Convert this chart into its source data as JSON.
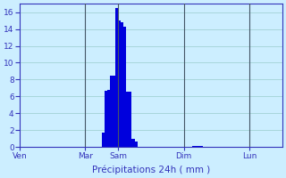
{
  "title": "",
  "xlabel": "Précipitations 24h ( mm )",
  "background_color": "#cceeff",
  "bar_color": "#0000dd",
  "bar_edge_color": "#3399ff",
  "grid_color": "#99cccc",
  "text_color": "#3333bb",
  "ylim": [
    0,
    17
  ],
  "yticks": [
    0,
    2,
    4,
    6,
    8,
    10,
    12,
    14,
    16
  ],
  "day_labels": [
    "Ven",
    "Mar",
    "Sam",
    "Dim",
    "Lun"
  ],
  "day_tick_positions": [
    0,
    48,
    72,
    120,
    168
  ],
  "vline_positions": [
    48,
    72,
    120,
    168
  ],
  "xlim": [
    0,
    192
  ],
  "bar_values": [
    0,
    0,
    0,
    0,
    0,
    0,
    0,
    0,
    0,
    0,
    0,
    0,
    0,
    0,
    0,
    0,
    0,
    0,
    0,
    0,
    0,
    0,
    0,
    0,
    0,
    0,
    0,
    0,
    0,
    0,
    0,
    0,
    0,
    0,
    0,
    0,
    0,
    0,
    0,
    0,
    0,
    0,
    0,
    0,
    0,
    0,
    0,
    0,
    0,
    0,
    0,
    0,
    0,
    0,
    0,
    0,
    0,
    0,
    0,
    0,
    1.7,
    1.7,
    6.7,
    6.7,
    6.8,
    6.8,
    8.5,
    8.5,
    8.5,
    8.5,
    16.5,
    16.5,
    15.0,
    15.0,
    14.8,
    14.8,
    14.3,
    14.3,
    6.6,
    6.6,
    6.6,
    6.6,
    1.0,
    1.0,
    0.7,
    0.7,
    0,
    0,
    0,
    0,
    0,
    0,
    0,
    0,
    0,
    0,
    0,
    0,
    0,
    0,
    0,
    0,
    0,
    0,
    0,
    0,
    0,
    0,
    0,
    0,
    0,
    0,
    0,
    0,
    0,
    0,
    0,
    0,
    0,
    0,
    0,
    0,
    0,
    0,
    0,
    0,
    0.15,
    0.15,
    0.15,
    0.15,
    0.15,
    0.15,
    0.15,
    0.15,
    0,
    0,
    0,
    0,
    0,
    0,
    0,
    0
  ]
}
